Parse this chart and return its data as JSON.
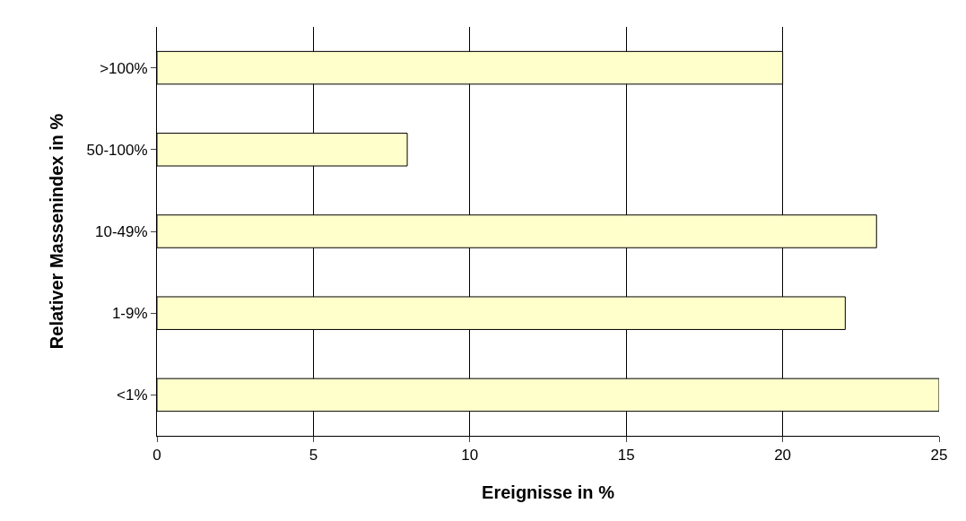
{
  "chart_data": {
    "type": "bar",
    "orientation": "horizontal",
    "xlabel": "Ereignisse in %",
    "ylabel": "Relativer Massenindex in %",
    "categories": [
      ">100%",
      "50-100%",
      "10-49%",
      "1-9%",
      "<1%"
    ],
    "values": [
      20,
      8,
      23,
      22,
      25
    ],
    "color": "#ffffcc",
    "xlim": [
      0,
      25
    ],
    "xticks": [
      0,
      5,
      10,
      15,
      20,
      25
    ],
    "grid": "x"
  }
}
